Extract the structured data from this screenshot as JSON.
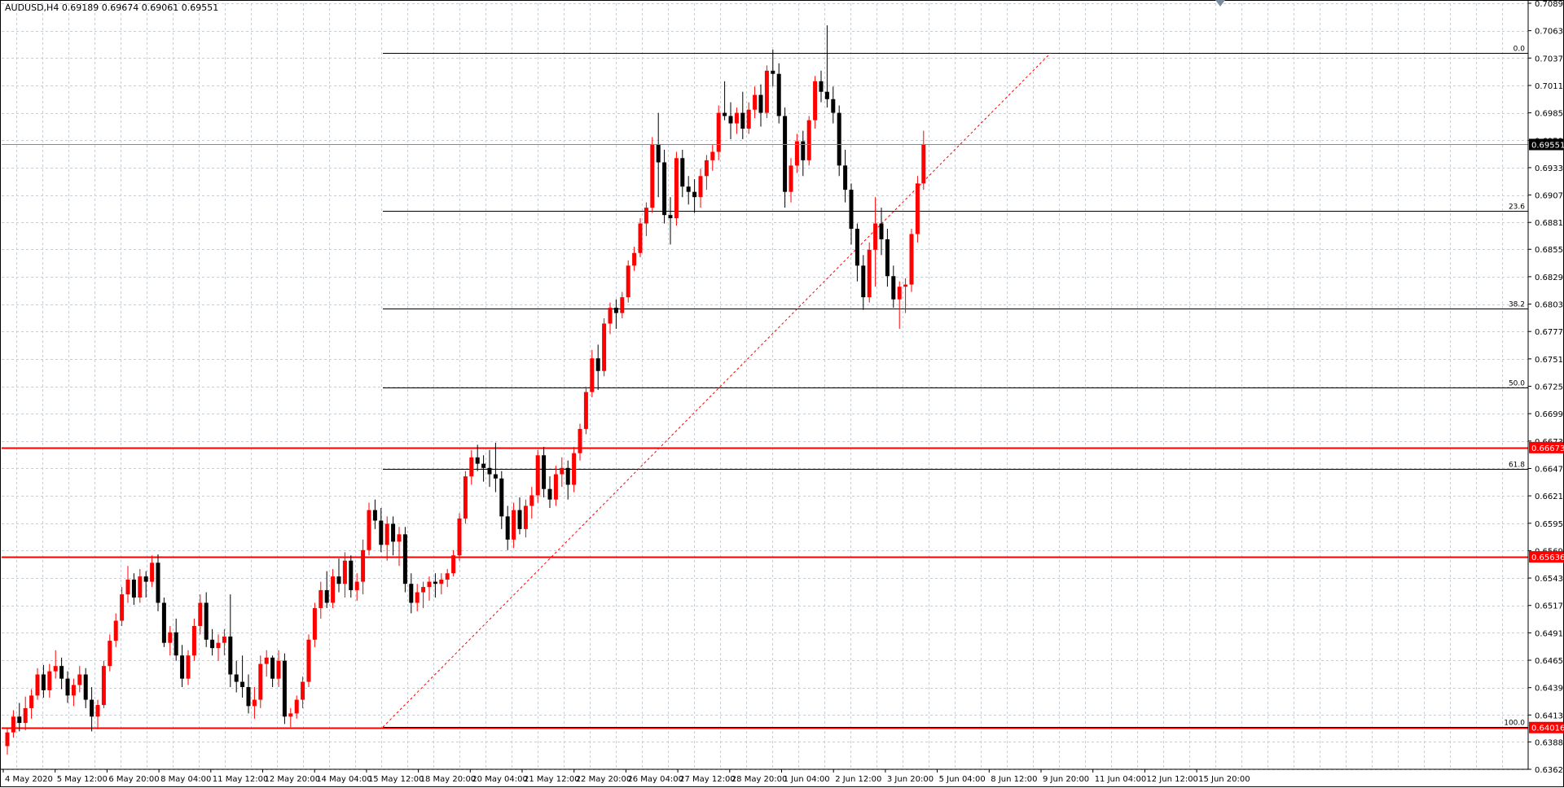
{
  "window": {
    "symbol_info": "AUDUSD,H4  0.69189 0.69674 0.69061 0.69551"
  },
  "colors": {
    "background": "#ffffff",
    "grid": "#c7cdd3",
    "bull": "#ff0000",
    "bear": "#000000",
    "level_line": "#ff0000",
    "fib_line": "#000000",
    "bid_line": "#7a8a9a",
    "trend_dotted": "#ff0000"
  },
  "price_axis": {
    "labels": [
      "0.70890",
      "0.70630",
      "0.70370",
      "0.70110",
      "0.69850",
      "0.69590",
      "0.69330",
      "0.69070",
      "0.68810",
      "0.68555",
      "0.68295",
      "0.68035",
      "0.67775",
      "0.67515",
      "0.67255",
      "0.66995",
      "0.66735",
      "0.66475",
      "0.66215",
      "0.65955",
      "0.65695",
      "0.65435",
      "0.65175",
      "0.64915",
      "0.64655",
      "0.64395",
      "0.64135",
      "0.63880",
      "0.63620"
    ],
    "current_price": "0.69551",
    "level_tags": [
      "0.66673",
      "0.65636",
      "0.64016"
    ]
  },
  "time_axis": {
    "labels": [
      "4 May 2020",
      "5 May 12:00",
      "6 May 20:00",
      "8 May 04:00",
      "11 May 12:00",
      "12 May 20:00",
      "14 May 04:00",
      "15 May 12:00",
      "18 May 20:00",
      "20 May 04:00",
      "21 May 12:00",
      "22 May 20:00",
      "26 May 04:00",
      "27 May 12:00",
      "28 May 20:00",
      "1 Jun 04:00",
      "2 Jun 12:00",
      "3 Jun 20:00",
      "5 Jun 04:00",
      "8 Jun 12:00",
      "9 Jun 20:00",
      "11 Jun 04:00",
      "12 Jun 12:00",
      "15 Jun 20:00"
    ]
  },
  "fibonacci": {
    "levels": [
      {
        "label": "0.0",
        "price": 0.7042
      },
      {
        "label": "23.6",
        "price": 0.6892
      },
      {
        "label": "38.2",
        "price": 0.6799
      },
      {
        "label": "50.0",
        "price": 0.6724
      },
      {
        "label": "61.8",
        "price": 0.6647
      },
      {
        "label": "100.0",
        "price": 0.6402
      }
    ]
  },
  "horizontal_levels": [
    0.66673,
    0.65636,
    0.64016
  ],
  "chart_data": {
    "type": "candlestick",
    "title": "AUDUSD,H4",
    "ylim": [
      0.6362,
      0.7089
    ],
    "grid": true,
    "candles": [
      [
        0.6384,
        0.6401,
        0.6376,
        0.6397
      ],
      [
        0.6397,
        0.6418,
        0.6392,
        0.6412
      ],
      [
        0.6412,
        0.6425,
        0.6398,
        0.6406
      ],
      [
        0.6406,
        0.6431,
        0.6399,
        0.642
      ],
      [
        0.642,
        0.6438,
        0.641,
        0.6432
      ],
      [
        0.6432,
        0.6458,
        0.6428,
        0.6452
      ],
      [
        0.6452,
        0.6461,
        0.643,
        0.6437
      ],
      [
        0.6437,
        0.6462,
        0.643,
        0.6455
      ],
      [
        0.6455,
        0.6475,
        0.6448,
        0.646
      ],
      [
        0.646,
        0.6468,
        0.6438,
        0.6448
      ],
      [
        0.6448,
        0.6455,
        0.6425,
        0.6432
      ],
      [
        0.6432,
        0.6448,
        0.6422,
        0.6442
      ],
      [
        0.6442,
        0.646,
        0.6435,
        0.6452
      ],
      [
        0.6452,
        0.6458,
        0.642,
        0.6428
      ],
      [
        0.6428,
        0.644,
        0.6398,
        0.6412
      ],
      [
        0.6412,
        0.6428,
        0.64,
        0.6423
      ],
      [
        0.6423,
        0.6465,
        0.642,
        0.646
      ],
      [
        0.646,
        0.649,
        0.6455,
        0.6484
      ],
      [
        0.6484,
        0.651,
        0.6478,
        0.6503
      ],
      [
        0.6503,
        0.6535,
        0.6498,
        0.6528
      ],
      [
        0.6528,
        0.6555,
        0.652,
        0.6542
      ],
      [
        0.6542,
        0.6548,
        0.6518,
        0.6525
      ],
      [
        0.6525,
        0.6552,
        0.652,
        0.6545
      ],
      [
        0.6545,
        0.655,
        0.6525,
        0.654
      ],
      [
        0.654,
        0.6565,
        0.6535,
        0.6558
      ],
      [
        0.6558,
        0.6566,
        0.6512,
        0.652
      ],
      [
        0.652,
        0.6525,
        0.6478,
        0.6482
      ],
      [
        0.6482,
        0.6498,
        0.647,
        0.6492
      ],
      [
        0.6492,
        0.6505,
        0.6465,
        0.647
      ],
      [
        0.647,
        0.648,
        0.644,
        0.6448
      ],
      [
        0.6448,
        0.6475,
        0.6442,
        0.647
      ],
      [
        0.647,
        0.6505,
        0.6465,
        0.6498
      ],
      [
        0.6498,
        0.6528,
        0.649,
        0.652
      ],
      [
        0.652,
        0.653,
        0.6478,
        0.6485
      ],
      [
        0.6485,
        0.6495,
        0.647,
        0.6477
      ],
      [
        0.6477,
        0.649,
        0.6465,
        0.6482
      ],
      [
        0.6482,
        0.6495,
        0.647,
        0.6488
      ],
      [
        0.6488,
        0.6528,
        0.644,
        0.6452
      ],
      [
        0.6452,
        0.6465,
        0.6435,
        0.6445
      ],
      [
        0.6445,
        0.647,
        0.643,
        0.644
      ],
      [
        0.644,
        0.6452,
        0.6415,
        0.6422
      ],
      [
        0.6422,
        0.644,
        0.641,
        0.6428
      ],
      [
        0.6428,
        0.647,
        0.642,
        0.6462
      ],
      [
        0.6462,
        0.6475,
        0.645,
        0.6468
      ],
      [
        0.6468,
        0.647,
        0.644,
        0.6448
      ],
      [
        0.6448,
        0.6475,
        0.644,
        0.6465
      ],
      [
        0.6465,
        0.6472,
        0.6405,
        0.6412
      ],
      [
        0.6412,
        0.642,
        0.6402,
        0.6415
      ],
      [
        0.6415,
        0.6432,
        0.641,
        0.6428
      ],
      [
        0.6428,
        0.645,
        0.642,
        0.6445
      ],
      [
        0.6445,
        0.649,
        0.644,
        0.6485
      ],
      [
        0.6485,
        0.652,
        0.6478,
        0.6515
      ],
      [
        0.6515,
        0.654,
        0.6505,
        0.6532
      ],
      [
        0.6532,
        0.655,
        0.6515,
        0.652
      ],
      [
        0.652,
        0.6552,
        0.6515,
        0.6545
      ],
      [
        0.6545,
        0.6562,
        0.653,
        0.6538
      ],
      [
        0.6538,
        0.6568,
        0.6525,
        0.656
      ],
      [
        0.656,
        0.6565,
        0.6525,
        0.6532
      ],
      [
        0.6532,
        0.6548,
        0.6522,
        0.654
      ],
      [
        0.654,
        0.658,
        0.6528,
        0.657
      ],
      [
        0.657,
        0.6615,
        0.6565,
        0.6608
      ],
      [
        0.6608,
        0.6618,
        0.659,
        0.6598
      ],
      [
        0.6598,
        0.661,
        0.6568,
        0.6575
      ],
      [
        0.6575,
        0.6602,
        0.656,
        0.6595
      ],
      [
        0.6595,
        0.6602,
        0.6565,
        0.6578
      ],
      [
        0.6578,
        0.6592,
        0.6555,
        0.6585
      ],
      [
        0.6585,
        0.6592,
        0.653,
        0.6538
      ],
      [
        0.6538,
        0.6548,
        0.651,
        0.652
      ],
      [
        0.652,
        0.6538,
        0.6512,
        0.653
      ],
      [
        0.653,
        0.654,
        0.6515,
        0.6535
      ],
      [
        0.6535,
        0.6545,
        0.6522,
        0.654
      ],
      [
        0.654,
        0.6548,
        0.6525,
        0.6538
      ],
      [
        0.6538,
        0.6548,
        0.6528,
        0.6542
      ],
      [
        0.6542,
        0.6552,
        0.6535,
        0.6548
      ],
      [
        0.6548,
        0.657,
        0.6545,
        0.6565
      ],
      [
        0.6565,
        0.6605,
        0.656,
        0.66
      ],
      [
        0.66,
        0.6645,
        0.6595,
        0.664
      ],
      [
        0.664,
        0.6665,
        0.6632,
        0.6658
      ],
      [
        0.6658,
        0.667,
        0.6645,
        0.6652
      ],
      [
        0.6652,
        0.666,
        0.6635,
        0.6648
      ],
      [
        0.6648,
        0.6665,
        0.663,
        0.6642
      ],
      [
        0.6642,
        0.6672,
        0.6625,
        0.6638
      ],
      [
        0.6638,
        0.6645,
        0.659,
        0.6602
      ],
      [
        0.6602,
        0.6612,
        0.657,
        0.658
      ],
      [
        0.658,
        0.6615,
        0.6572,
        0.6608
      ],
      [
        0.6608,
        0.662,
        0.6585,
        0.659
      ],
      [
        0.659,
        0.6618,
        0.6582,
        0.6612
      ],
      [
        0.6612,
        0.663,
        0.66,
        0.6622
      ],
      [
        0.6622,
        0.6665,
        0.6615,
        0.666
      ],
      [
        0.666,
        0.6668,
        0.662,
        0.6628
      ],
      [
        0.6628,
        0.664,
        0.661,
        0.6618
      ],
      [
        0.6618,
        0.665,
        0.6612,
        0.6642
      ],
      [
        0.6642,
        0.6658,
        0.663,
        0.6648
      ],
      [
        0.6648,
        0.6655,
        0.6618,
        0.6632
      ],
      [
        0.6632,
        0.6668,
        0.6625,
        0.6662
      ],
      [
        0.6662,
        0.669,
        0.6655,
        0.6685
      ],
      [
        0.6685,
        0.6725,
        0.668,
        0.672
      ],
      [
        0.672,
        0.676,
        0.6715,
        0.6752
      ],
      [
        0.6752,
        0.6765,
        0.6722,
        0.674
      ],
      [
        0.674,
        0.679,
        0.6735,
        0.6785
      ],
      [
        0.6785,
        0.6805,
        0.6775,
        0.68
      ],
      [
        0.68,
        0.6808,
        0.678,
        0.6795
      ],
      [
        0.6795,
        0.6815,
        0.679,
        0.681
      ],
      [
        0.681,
        0.6845,
        0.6805,
        0.684
      ],
      [
        0.684,
        0.6858,
        0.6835,
        0.6852
      ],
      [
        0.6852,
        0.6885,
        0.6848,
        0.688
      ],
      [
        0.688,
        0.69,
        0.6868,
        0.6895
      ],
      [
        0.6895,
        0.6962,
        0.689,
        0.6955
      ],
      [
        0.6955,
        0.6985,
        0.6905,
        0.6938
      ],
      [
        0.6938,
        0.695,
        0.688,
        0.6888
      ],
      [
        0.6888,
        0.6905,
        0.686,
        0.6885
      ],
      [
        0.6885,
        0.6948,
        0.6878,
        0.6942
      ],
      [
        0.6942,
        0.695,
        0.6905,
        0.6915
      ],
      [
        0.6915,
        0.6925,
        0.6898,
        0.691
      ],
      [
        0.691,
        0.6922,
        0.689,
        0.6905
      ],
      [
        0.6905,
        0.6932,
        0.6895,
        0.6925
      ],
      [
        0.6925,
        0.6945,
        0.6912,
        0.694
      ],
      [
        0.694,
        0.6955,
        0.693,
        0.6948
      ],
      [
        0.6948,
        0.6992,
        0.694,
        0.6985
      ],
      [
        0.6985,
        0.7015,
        0.6978,
        0.6982
      ],
      [
        0.6982,
        0.6995,
        0.696,
        0.6975
      ],
      [
        0.6975,
        0.699,
        0.6965,
        0.6985
      ],
      [
        0.6985,
        0.7005,
        0.696,
        0.697
      ],
      [
        0.697,
        0.6995,
        0.6965,
        0.6988
      ],
      [
        0.6988,
        0.701,
        0.698,
        0.7002
      ],
      [
        0.7002,
        0.7012,
        0.6972,
        0.6985
      ],
      [
        0.6985,
        0.703,
        0.698,
        0.7025
      ],
      [
        0.7025,
        0.7045,
        0.701,
        0.7022
      ],
      [
        0.7022,
        0.7032,
        0.6975,
        0.6982
      ],
      [
        0.6982,
        0.699,
        0.6895,
        0.691
      ],
      [
        0.691,
        0.6942,
        0.69,
        0.6935
      ],
      [
        0.6935,
        0.6965,
        0.6928,
        0.6958
      ],
      [
        0.6958,
        0.6968,
        0.6925,
        0.694
      ],
      [
        0.694,
        0.6982,
        0.6935,
        0.6978
      ],
      [
        0.6978,
        0.702,
        0.697,
        0.7015
      ],
      [
        0.7015,
        0.7025,
        0.6995,
        0.7005
      ],
      [
        0.7005,
        0.7068,
        0.699,
        0.6998
      ],
      [
        0.6998,
        0.701,
        0.6975,
        0.6985
      ],
      [
        0.6985,
        0.6992,
        0.6925,
        0.6935
      ],
      [
        0.6935,
        0.695,
        0.69,
        0.6912
      ],
      [
        0.6912,
        0.6918,
        0.686,
        0.6875
      ],
      [
        0.6875,
        0.688,
        0.6825,
        0.684
      ],
      [
        0.684,
        0.685,
        0.6798,
        0.681
      ],
      [
        0.681,
        0.6862,
        0.6805,
        0.6855
      ],
      [
        0.6855,
        0.6905,
        0.682,
        0.688
      ],
      [
        0.688,
        0.6895,
        0.685,
        0.6865
      ],
      [
        0.6865,
        0.6875,
        0.682,
        0.683
      ],
      [
        0.683,
        0.684,
        0.68,
        0.6808
      ],
      [
        0.6808,
        0.6825,
        0.678,
        0.682
      ],
      [
        0.682,
        0.6828,
        0.6795,
        0.6822
      ],
      [
        0.6822,
        0.6875,
        0.6815,
        0.687
      ],
      [
        0.687,
        0.6925,
        0.6862,
        0.6918
      ],
      [
        0.6918,
        0.6968,
        0.6912,
        0.6955
      ]
    ]
  }
}
